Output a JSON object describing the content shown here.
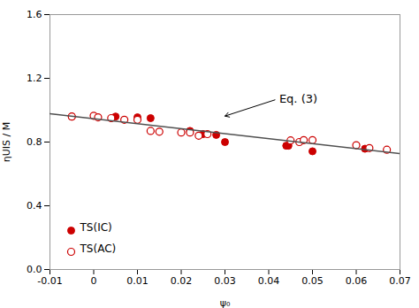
{
  "chart_data": {
    "type": "scatter",
    "xlabel": "ψ₀",
    "ylabel": "ηUIS / M",
    "xlim": [
      -0.01,
      0.07
    ],
    "ylim": [
      0.0,
      1.6
    ],
    "xticks": [
      -0.01,
      0,
      0.01,
      0.02,
      0.03,
      0.04,
      0.05,
      0.06,
      0.07
    ],
    "yticks": [
      {
        "value": 0,
        "label": "0.0"
      },
      0.4,
      0.8,
      1.2,
      1.6
    ],
    "legend": "lower left",
    "series": [
      {
        "name": "TS(IC)",
        "type": "scatter",
        "marker": "filled_circle",
        "color": "#cc0000",
        "x": [
          -0.005,
          0.005,
          0.01,
          0.013,
          0.022,
          0.025,
          0.028,
          0.03,
          0.044,
          0.0445,
          0.05,
          0.062
        ],
        "values": [
          0.96,
          0.96,
          0.955,
          0.95,
          0.87,
          0.85,
          0.845,
          0.8,
          0.777,
          0.777,
          0.742,
          0.758
        ]
      },
      {
        "name": "TS(AC)",
        "type": "scatter",
        "marker": "open_circle",
        "color": "#cc0000",
        "x": [
          -0.005,
          0.0,
          0.001,
          0.004,
          0.007,
          0.01,
          0.013,
          0.015,
          0.02,
          0.022,
          0.024,
          0.026,
          0.045,
          0.047,
          0.048,
          0.05,
          0.06,
          0.063,
          0.067
        ],
        "values": [
          0.96,
          0.965,
          0.955,
          0.95,
          0.94,
          0.94,
          0.87,
          0.865,
          0.86,
          0.86,
          0.84,
          0.85,
          0.81,
          0.8,
          0.812,
          0.812,
          0.78,
          0.762,
          0.752
        ]
      },
      {
        "type": "line",
        "color": "#505050",
        "x": [
          -0.01,
          0.07
        ],
        "values": [
          0.978,
          0.728
        ]
      }
    ],
    "annotations": [
      {
        "text": "Eq. (3)",
        "x": 0.042,
        "y": 1.07,
        "arrow_x": 0.03,
        "arrow_y": 0.963
      }
    ]
  }
}
